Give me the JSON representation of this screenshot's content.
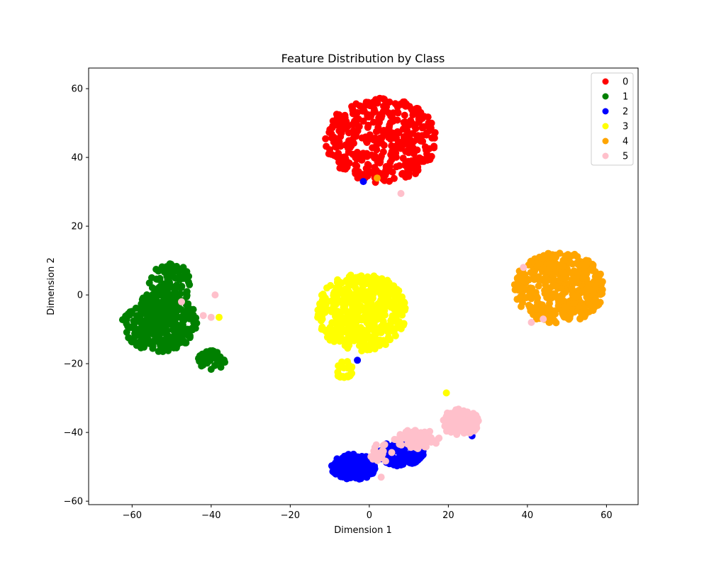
{
  "chart_data": {
    "type": "scatter",
    "title": "Feature Distribution by Class",
    "xlabel": "Dimension 1",
    "ylabel": "Dimension 2",
    "xlim": [
      -71,
      68
    ],
    "ylim": [
      -61,
      66
    ],
    "xticks": [
      -60,
      -40,
      -20,
      0,
      20,
      40,
      60
    ],
    "yticks": [
      -60,
      -40,
      -20,
      0,
      20,
      40,
      60
    ],
    "grid": false,
    "legend_position": "upper right",
    "series": [
      {
        "name": "0",
        "color": "#ff0000",
        "clusters": [
          {
            "cx": 3,
            "cy": 45,
            "rx": 15,
            "ry": 13,
            "n": 400
          }
        ],
        "outliers": []
      },
      {
        "name": "1",
        "color": "#008000",
        "clusters": [
          {
            "cx": -53,
            "cy": -8,
            "rx": 10,
            "ry": 9,
            "n": 330
          },
          {
            "cx": -50,
            "cy": 3,
            "rx": 6,
            "ry": 7,
            "n": 90
          },
          {
            "cx": -40,
            "cy": -19,
            "rx": 4,
            "ry": 3,
            "n": 40
          }
        ],
        "outliers": []
      },
      {
        "name": "2",
        "color": "#0000ff",
        "clusters": [
          {
            "cx": -4,
            "cy": -50,
            "rx": 6,
            "ry": 4,
            "n": 200
          },
          {
            "cx": 8,
            "cy": -46,
            "rx": 6,
            "ry": 4,
            "n": 150
          }
        ],
        "outliers": [
          [
            -1.5,
            33
          ],
          [
            -3,
            -19
          ],
          [
            26,
            -41
          ]
        ]
      },
      {
        "name": "3",
        "color": "#ffff00",
        "clusters": [
          {
            "cx": -2,
            "cy": -5,
            "rx": 12,
            "ry": 12,
            "n": 460
          },
          {
            "cx": -6,
            "cy": -22,
            "rx": 2.5,
            "ry": 3,
            "n": 25
          }
        ],
        "outliers": [
          [
            -38,
            -6.5
          ],
          [
            19.5,
            -28.5
          ]
        ]
      },
      {
        "name": "4",
        "color": "#ffa500",
        "clusters": [
          {
            "cx": 48,
            "cy": 2,
            "rx": 12,
            "ry": 11,
            "n": 420
          }
        ],
        "outliers": [
          [
            2,
            34
          ]
        ]
      },
      {
        "name": "5",
        "color": "#ffc0cb",
        "clusters": [
          {
            "cx": 23,
            "cy": -37,
            "rx": 5,
            "ry": 4,
            "n": 120
          },
          {
            "cx": 12,
            "cy": -42,
            "rx": 6,
            "ry": 3,
            "n": 60
          },
          {
            "cx": 3,
            "cy": -46,
            "rx": 3,
            "ry": 3,
            "n": 20
          }
        ],
        "outliers": [
          [
            -47.5,
            -2
          ],
          [
            -42,
            -6
          ],
          [
            -40,
            -6.5
          ],
          [
            -39,
            0
          ],
          [
            39,
            8
          ],
          [
            41,
            -8
          ],
          [
            44,
            -7
          ],
          [
            8,
            29.5
          ],
          [
            3,
            -53
          ]
        ]
      }
    ]
  }
}
